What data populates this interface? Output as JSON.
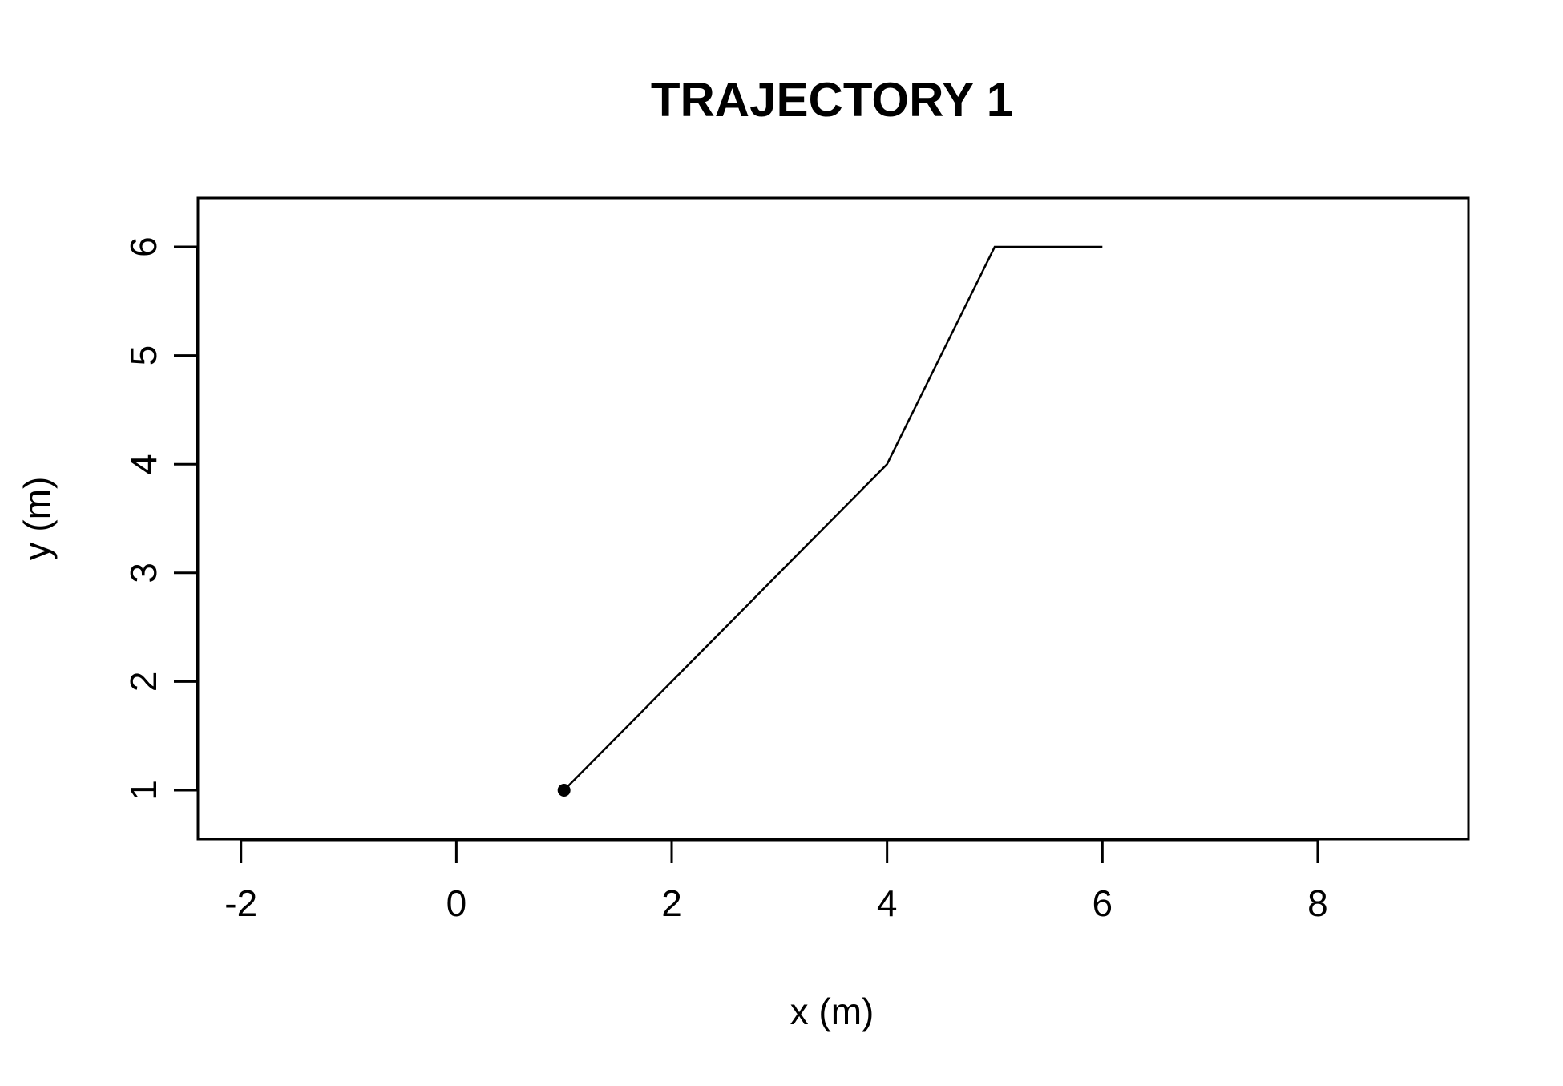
{
  "chart_data": {
    "type": "line",
    "title": "TRAJECTORY 1",
    "xlabel": "x (m)",
    "ylabel": "y (m)",
    "xlim": [
      -2.4,
      9.4
    ],
    "ylim": [
      0.55,
      6.45
    ],
    "x_ticks": [
      -2,
      0,
      2,
      4,
      6,
      8
    ],
    "y_ticks": [
      1,
      2,
      3,
      4,
      5,
      6
    ],
    "x_tick_labels": [
      "-2",
      "0",
      "2",
      "4",
      "6",
      "8"
    ],
    "y_tick_labels": [
      "1",
      "2",
      "3",
      "4",
      "5",
      "6"
    ],
    "grid": false,
    "legend": "none",
    "series": [
      {
        "x": [
          1,
          4,
          5,
          6
        ],
        "y": [
          1,
          4,
          6,
          6
        ],
        "color": "#000000"
      }
    ],
    "start_point": {
      "x": 1,
      "y": 1,
      "color": "#000000"
    }
  }
}
